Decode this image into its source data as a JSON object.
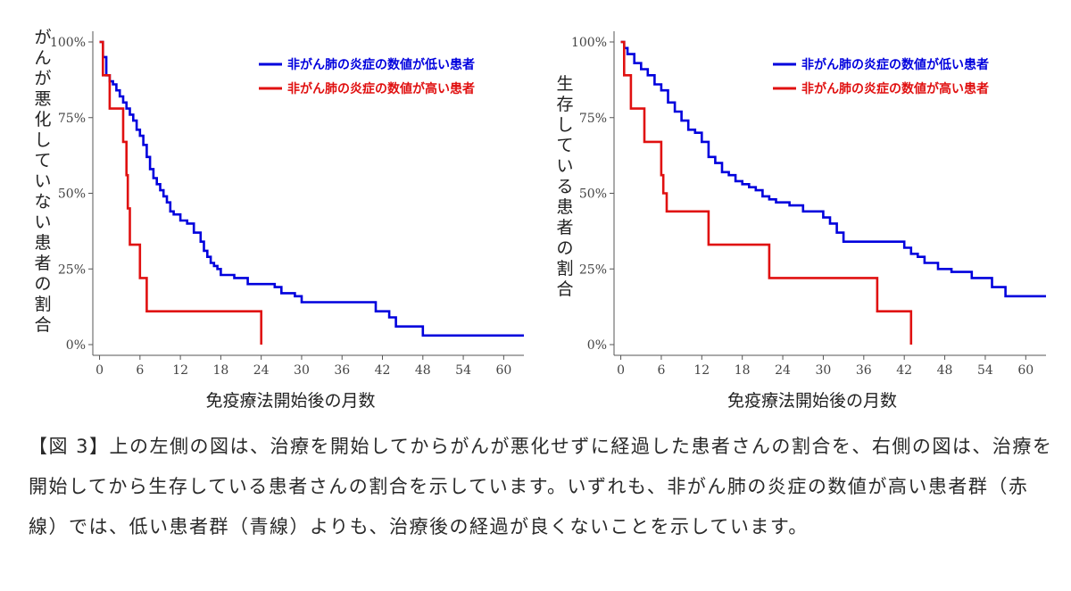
{
  "chart_data": [
    {
      "type": "line",
      "step": true,
      "ylabel": "がんが悪化していない患者の割合",
      "xlabel": "免疫療法開始後の月数",
      "xlim": [
        -1,
        63
      ],
      "ylim": [
        0,
        1
      ],
      "xticks": [
        0,
        6,
        12,
        18,
        24,
        30,
        36,
        42,
        48,
        54,
        60
      ],
      "yticks": [
        0,
        0.25,
        0.5,
        0.75,
        1.0
      ],
      "ytick_labels": [
        "0%",
        "25%",
        "50%",
        "75%",
        "100%"
      ],
      "legend_position": "top-right",
      "series": [
        {
          "name": "非がん肺の炎症の数値が低い患者",
          "color": "#0000dd",
          "x": [
            0,
            0.5,
            1,
            1.5,
            2,
            2.5,
            3,
            3.5,
            4,
            4.5,
            5,
            5.5,
            6,
            6.5,
            7,
            7.5,
            8,
            8.5,
            9,
            9.5,
            10,
            10.5,
            11,
            12,
            13,
            14,
            15,
            15.5,
            16,
            16.5,
            17,
            17.5,
            18,
            20,
            22,
            24,
            26,
            27,
            29,
            30,
            40,
            41,
            43,
            44,
            46,
            48,
            63
          ],
          "y": [
            1.0,
            0.95,
            0.89,
            0.87,
            0.86,
            0.84,
            0.82,
            0.8,
            0.78,
            0.76,
            0.74,
            0.71,
            0.69,
            0.66,
            0.62,
            0.58,
            0.55,
            0.53,
            0.51,
            0.49,
            0.47,
            0.44,
            0.43,
            0.41,
            0.4,
            0.37,
            0.34,
            0.31,
            0.29,
            0.27,
            0.26,
            0.25,
            0.23,
            0.22,
            0.2,
            0.2,
            0.19,
            0.17,
            0.16,
            0.14,
            0.14,
            0.11,
            0.09,
            0.06,
            0.06,
            0.03,
            0.03
          ]
        },
        {
          "name": "非がん肺の炎症の数値が高い患者",
          "color": "#e01010",
          "x": [
            0,
            0.5,
            1.5,
            3.5,
            4,
            4.2,
            4.5,
            6,
            7,
            24
          ],
          "y": [
            1.0,
            0.89,
            0.78,
            0.67,
            0.56,
            0.45,
            0.33,
            0.22,
            0.11,
            0.0
          ]
        }
      ]
    },
    {
      "type": "line",
      "step": true,
      "ylabel": "生存している患者の割合",
      "xlabel": "免疫療法開始後の月数",
      "xlim": [
        -1,
        63
      ],
      "ylim": [
        0,
        1
      ],
      "xticks": [
        0,
        6,
        12,
        18,
        24,
        30,
        36,
        42,
        48,
        54,
        60
      ],
      "yticks": [
        0,
        0.25,
        0.5,
        0.75,
        1.0
      ],
      "ytick_labels": [
        "0%",
        "25%",
        "50%",
        "75%",
        "100%"
      ],
      "legend_position": "top-right",
      "series": [
        {
          "name": "非がん肺の炎症の数値が低い患者",
          "color": "#0000dd",
          "x": [
            0,
            0.5,
            1,
            2,
            3,
            4,
            5,
            6,
            7,
            8,
            9,
            10,
            11,
            12,
            13,
            14,
            15,
            16,
            17,
            18,
            19,
            20,
            21,
            22,
            23,
            25,
            27,
            30,
            31,
            32,
            33,
            37,
            42,
            43,
            44,
            45,
            47,
            49,
            52,
            55,
            57,
            63
          ],
          "y": [
            1.0,
            0.98,
            0.96,
            0.93,
            0.91,
            0.89,
            0.86,
            0.84,
            0.8,
            0.77,
            0.74,
            0.71,
            0.7,
            0.67,
            0.62,
            0.6,
            0.57,
            0.56,
            0.54,
            0.53,
            0.52,
            0.51,
            0.49,
            0.48,
            0.47,
            0.46,
            0.44,
            0.42,
            0.4,
            0.37,
            0.34,
            0.34,
            0.32,
            0.3,
            0.29,
            0.27,
            0.25,
            0.24,
            0.22,
            0.19,
            0.16,
            0.16
          ]
        },
        {
          "name": "非がん肺の炎症の数値が高い患者",
          "color": "#e01010",
          "x": [
            0,
            0.5,
            1.5,
            3.5,
            6,
            6.3,
            6.8,
            13,
            22,
            38,
            43
          ],
          "y": [
            1.0,
            0.89,
            0.78,
            0.67,
            0.56,
            0.5,
            0.44,
            0.33,
            0.22,
            0.11,
            0.0
          ]
        }
      ]
    }
  ],
  "caption": "【図 3】上の左側の図は、治療を開始してからがんが悪化せずに経過した患者さんの割合を、右側の図は、治療を開始してから生存している患者さんの割合を示しています。いずれも、非がん肺の炎症の数値が高い患者群（赤線）では、低い患者群（青線）よりも、治療後の経過が良くないことを示しています。"
}
